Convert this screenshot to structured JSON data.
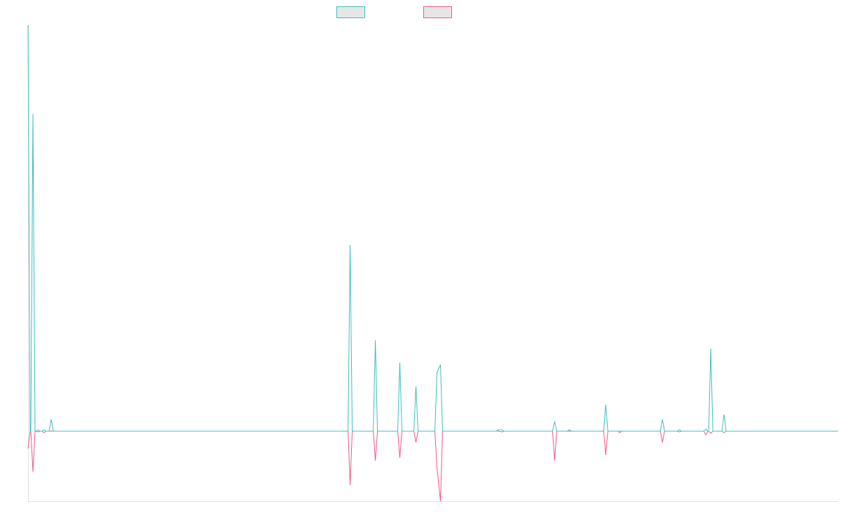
{
  "colors": {
    "series_a": "#3dbfbc",
    "series_b": "#ee5a82",
    "legend_fill": "#e6e6e6",
    "axis": "#e0e0e0"
  },
  "chart_data": {
    "type": "line",
    "title": "",
    "xlabel": "",
    "ylabel": "",
    "legend_position": "top-center",
    "grid": false,
    "x": [
      0,
      7,
      14,
      23,
      33,
      460,
      496,
      531,
      554,
      584,
      589,
      672,
      677,
      752,
      773,
      825,
      845,
      906,
      930,
      968,
      975,
      994,
      1157
    ],
    "xlim": [
      0,
      1157
    ],
    "ylim": [
      -1.0,
      5.8
    ],
    "series": [
      {
        "name": "",
        "color_key": "series_a",
        "values": [
          5.8,
          4.53,
          0.02,
          0.02,
          0.17,
          2.66,
          1.3,
          0.98,
          0.64,
          0.84,
          0.95,
          0.02,
          0.02,
          0.14,
          0.02,
          0.38,
          0.0,
          0.17,
          0.02,
          0.03,
          1.18,
          0.24,
          0.0
        ]
      },
      {
        "name": "",
        "color_key": "series_b",
        "values": [
          -0.25,
          -0.58,
          -0.01,
          -0.02,
          0.0,
          -0.77,
          -0.42,
          -0.38,
          -0.16,
          -0.52,
          -1.0,
          0.0,
          -0.01,
          -0.42,
          0.0,
          -0.34,
          -0.02,
          -0.16,
          -0.01,
          -0.05,
          -0.03,
          -0.02,
          0.0
        ]
      }
    ]
  }
}
